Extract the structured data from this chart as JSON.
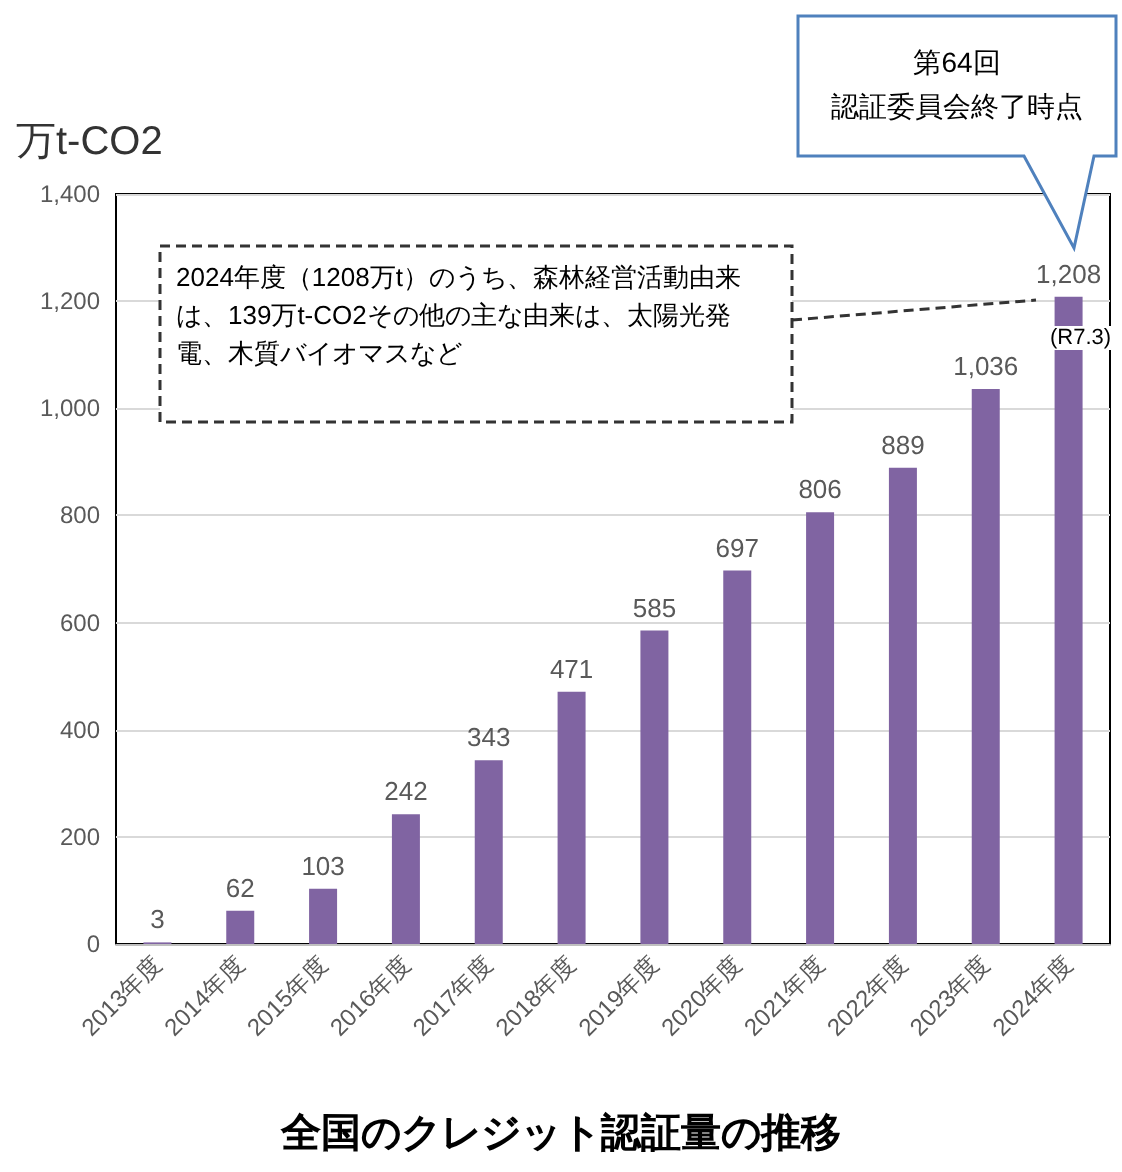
{
  "chart_data": {
    "type": "bar",
    "title": "全国のクレジット認証量の推移",
    "ylabel": "万t-CO2",
    "categories": [
      "2013年度",
      "2014年度",
      "2015年度",
      "2016年度",
      "2017年度",
      "2018年度",
      "2019年度",
      "2020年度",
      "2021年度",
      "2022年度",
      "2023年度",
      "2024年度"
    ],
    "values": [
      3,
      62,
      103,
      242,
      343,
      471,
      585,
      697,
      806,
      889,
      1036,
      1208
    ],
    "value_labels": [
      "3",
      "62",
      "103",
      "242",
      "343",
      "471",
      "585",
      "697",
      "806",
      "889",
      "1,036",
      "1,208"
    ],
    "color": "#8064a2",
    "ylim": [
      0,
      1400
    ],
    "yticks": [
      0,
      200,
      400,
      600,
      800,
      {
        "value": 1000,
        "label": "1,000"
      },
      {
        "value": 1200,
        "label": "1,200"
      },
      {
        "value": 1400,
        "label": "1,400"
      }
    ],
    "grid": "y",
    "annotations": [
      "2024年度（1208万t）のうち、森林経営活動由来は、139万t-CO2その他の主な由来は、太陽光発電、木質バイオマスなど",
      "第64回",
      "認証委員会終了時点",
      "(R7.3)"
    ]
  }
}
